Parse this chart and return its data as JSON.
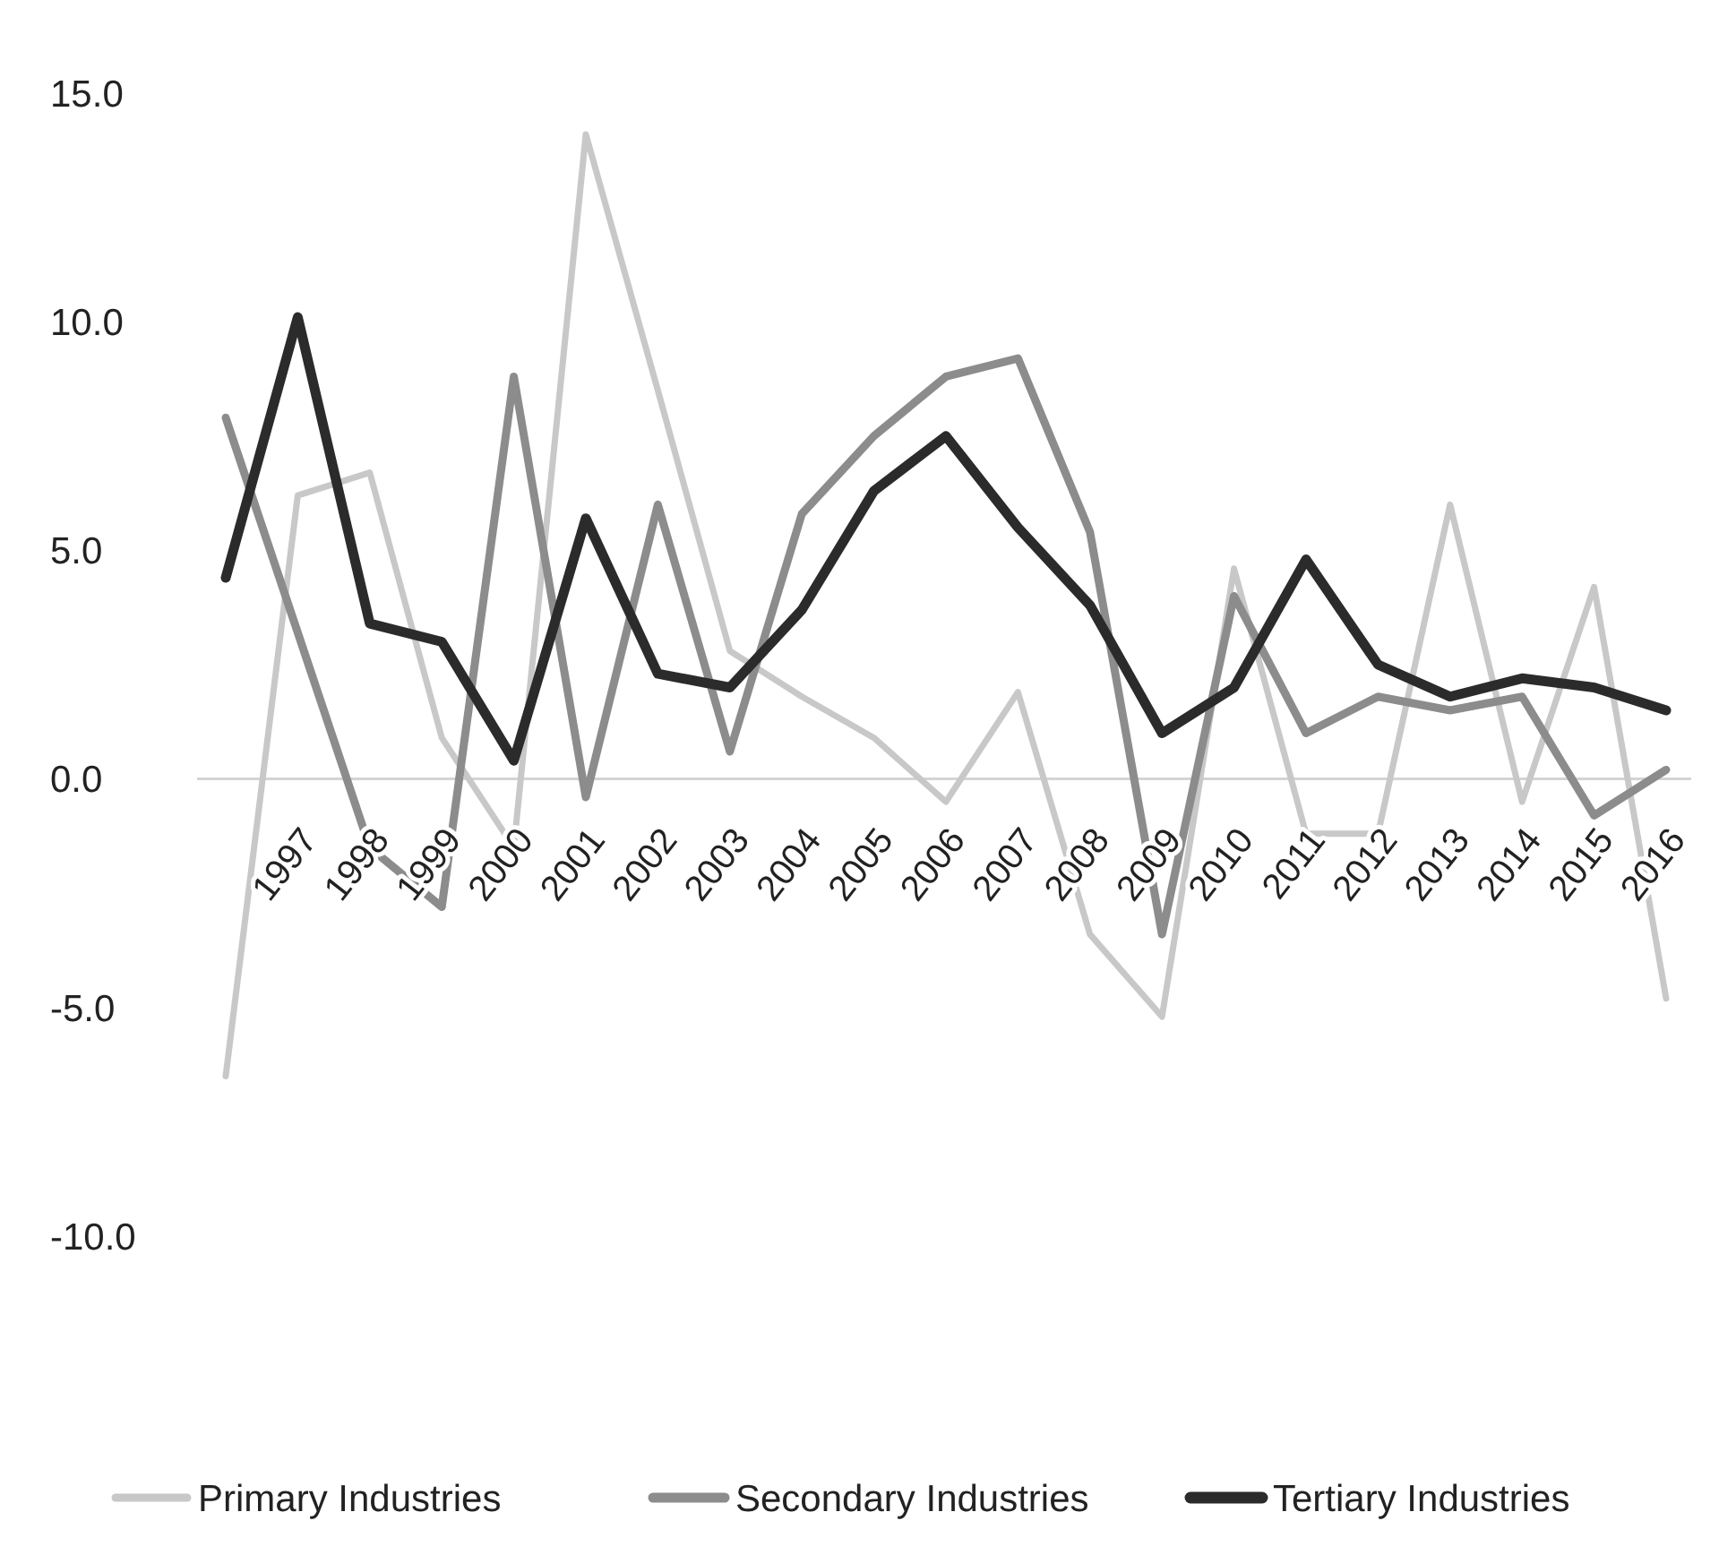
{
  "chart_data": {
    "type": "line",
    "categories": [
      null,
      "1997",
      "1998",
      "1999",
      "2000",
      "2001",
      "2002",
      "2003",
      "2004",
      "2005",
      "2006",
      "2007",
      "2008",
      "2009",
      "2010",
      "2011",
      "2012",
      "2013",
      "2014",
      "2015",
      "2016"
    ],
    "series": [
      {
        "name": "Primary Industries",
        "color": "#c8c8c8",
        "values": [
          -6.5,
          6.2,
          6.7,
          0.9,
          -1.5,
          14.1,
          8.5,
          2.8,
          1.8,
          0.9,
          -0.5,
          1.9,
          -3.4,
          -5.2,
          4.6,
          -1.2,
          -1.2,
          6.0,
          -0.5,
          4.2,
          -4.8
        ]
      },
      {
        "name": "Secondary Industries",
        "color": "#8c8c8c",
        "values": [
          7.9,
          3.2,
          -1.5,
          -2.8,
          8.8,
          -0.4,
          6.0,
          0.6,
          5.8,
          7.5,
          8.8,
          9.2,
          5.4,
          -3.4,
          4.0,
          1.0,
          1.8,
          1.5,
          1.8,
          -0.8,
          0.2
        ]
      },
      {
        "name": "Tertiary Industries",
        "color": "#2b2b2b",
        "values": [
          4.4,
          10.1,
          3.4,
          3.0,
          0.4,
          5.7,
          2.3,
          2.0,
          3.7,
          6.3,
          7.5,
          5.5,
          3.8,
          1.0,
          2.0,
          4.8,
          2.5,
          1.8,
          2.2,
          2.0,
          1.5
        ]
      }
    ],
    "ylim": [
      -10,
      15
    ],
    "yticks": [
      {
        "value": 15,
        "label": "15.0"
      },
      {
        "value": 10,
        "label": "10.0"
      },
      {
        "value": 5,
        "label": "5.0"
      },
      {
        "value": 0,
        "label": "0.0"
      },
      {
        "value": -5,
        "label": "-5.0"
      },
      {
        "value": -10,
        "label": "-10.0"
      }
    ],
    "grid": false,
    "legend": "bottom",
    "marker": "none",
    "line_style": "solid"
  }
}
